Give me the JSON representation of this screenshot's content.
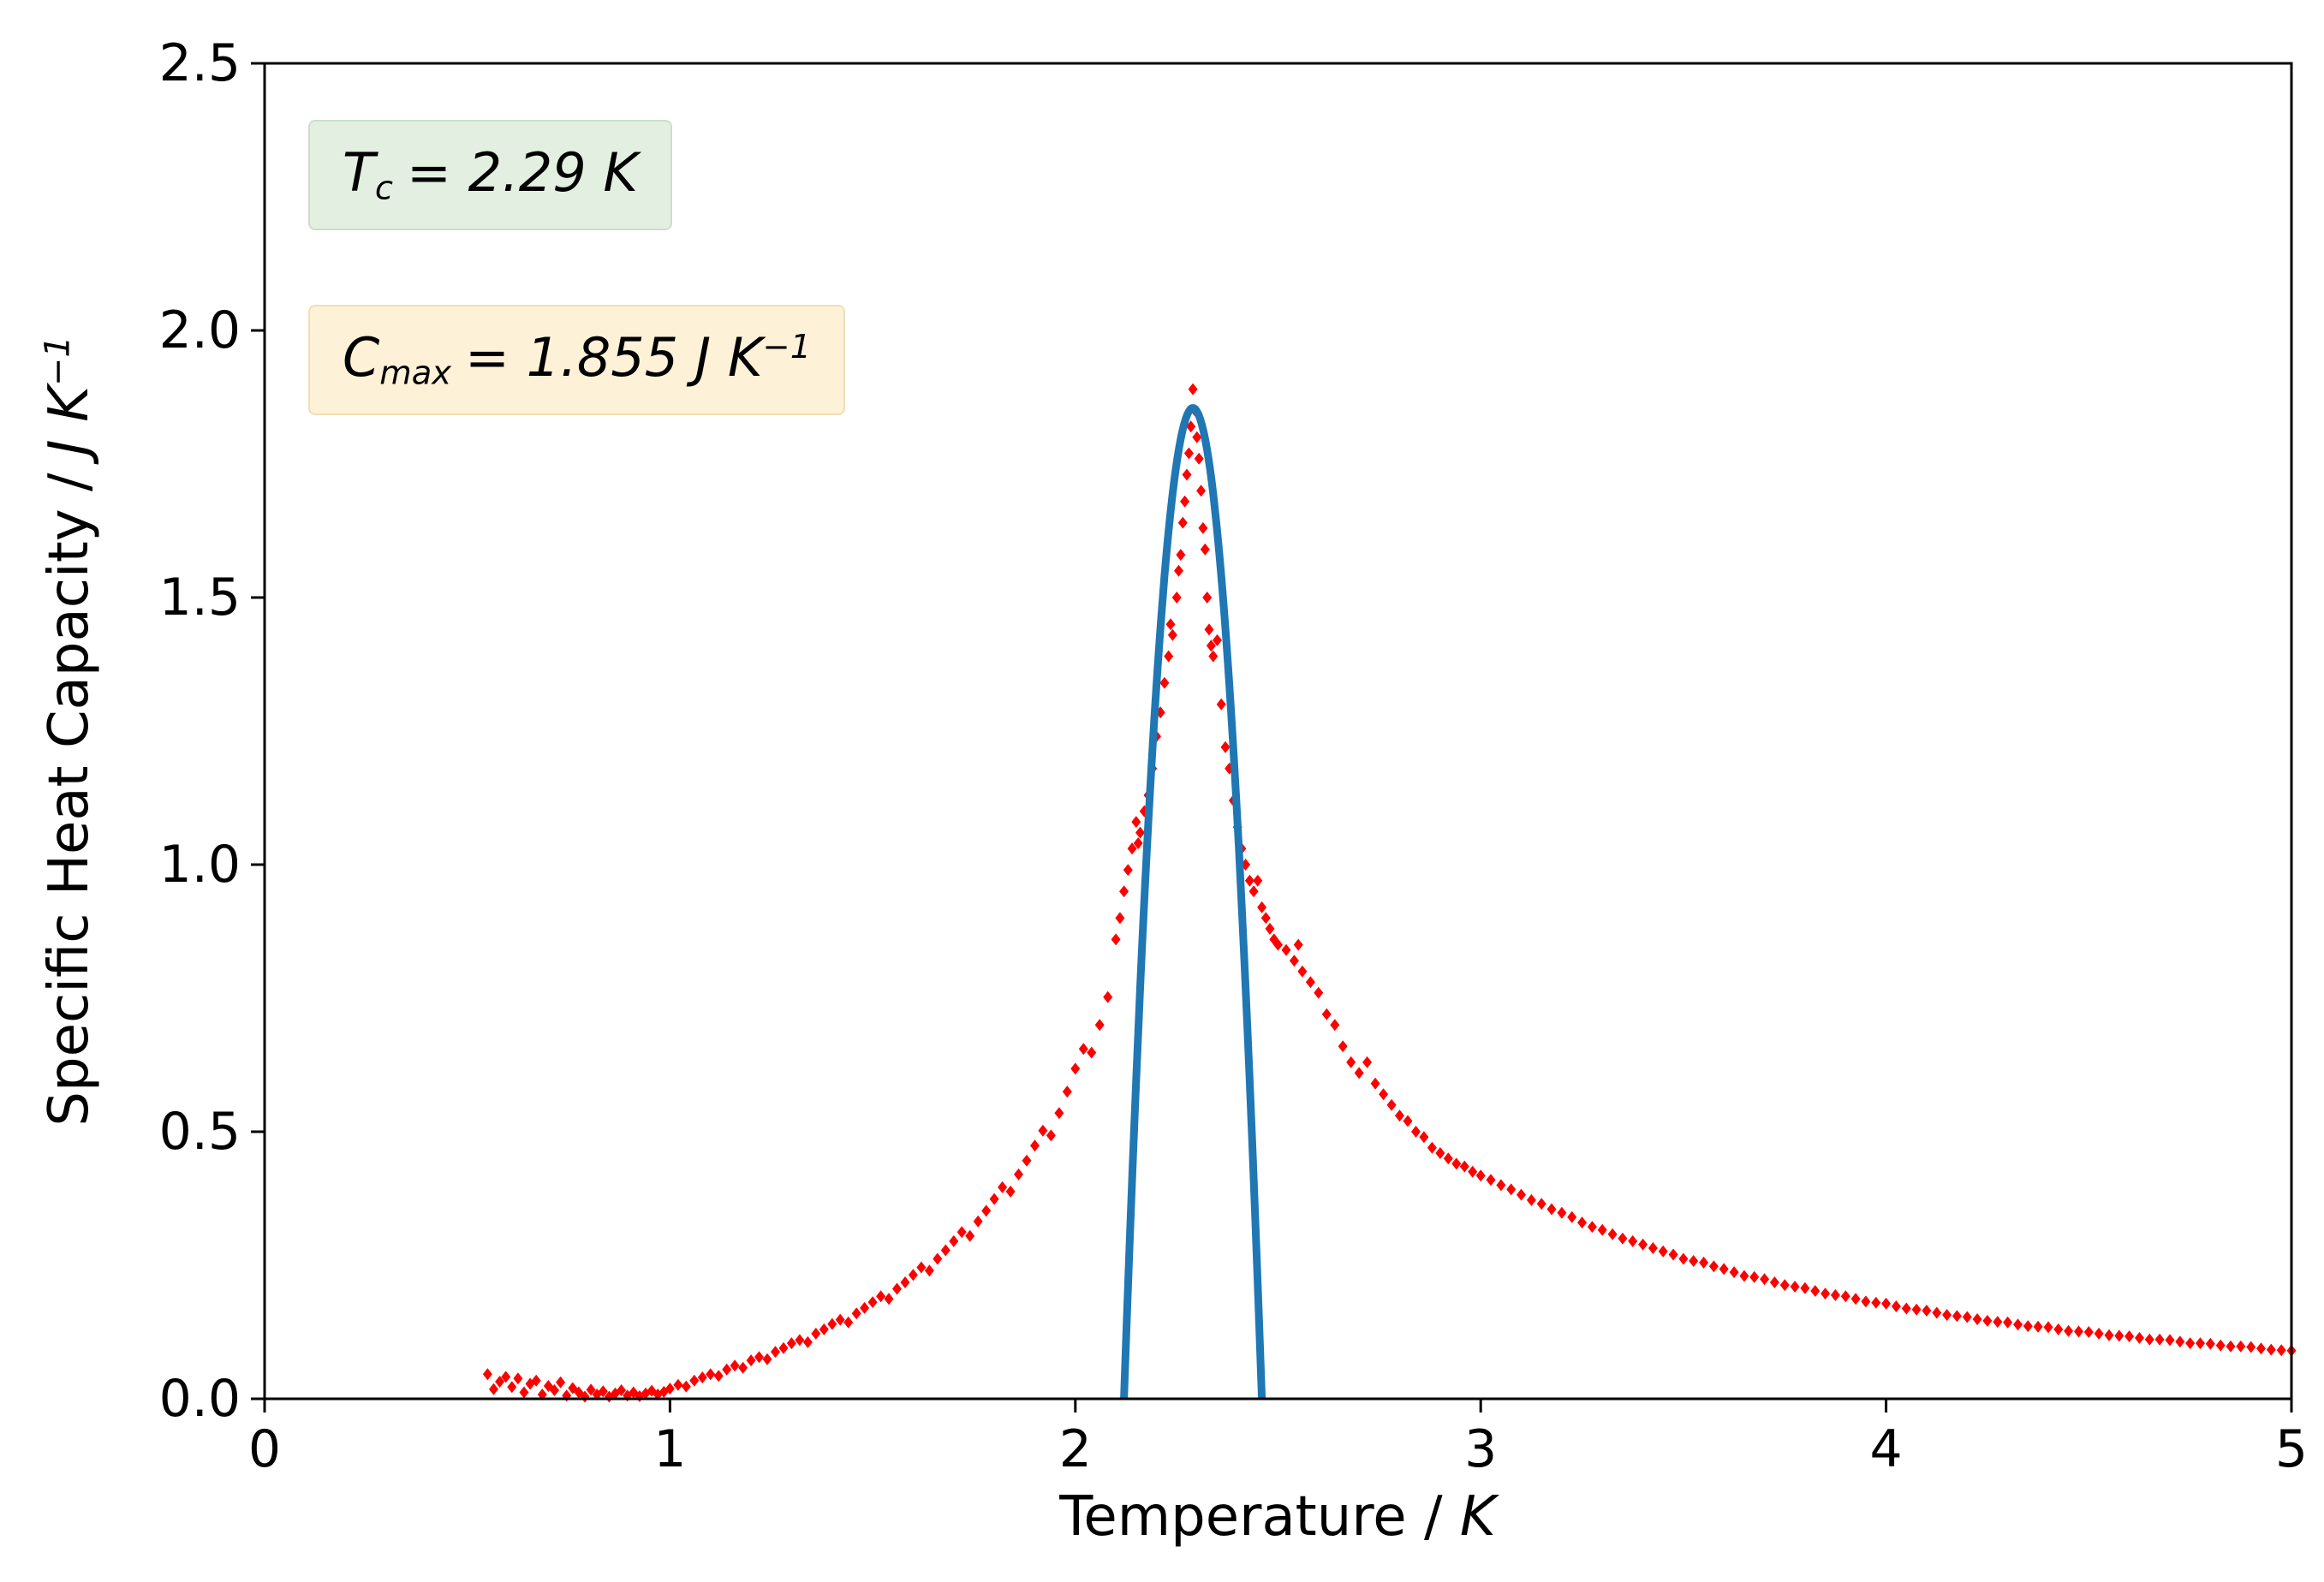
{
  "figure": {
    "background": "#ffffff",
    "frame_color": "#000000"
  },
  "annotations": {
    "tc": {
      "symbol": "T",
      "subscript": "c",
      "value": "= 2.29 K",
      "bg": "#e3f0e1",
      "border": "#cbdfc9"
    },
    "cmax": {
      "symbol": "C",
      "subscript": "max",
      "value": "= 1.855 J K",
      "superscript": "−1",
      "bg": "#fdf1d8",
      "border": "#eedfb5"
    }
  },
  "chart_data": {
    "type": "scatter",
    "title": "",
    "xlabel": "Temperature / K",
    "xlabel_parts": {
      "main": "Temperature / ",
      "unit": "K"
    },
    "ylabel": "Specific Heat Capacity / J K⁻¹",
    "ylabel_parts": {
      "main": "Specific Heat Capacity / ",
      "unit": "J K",
      "sup": "−1"
    },
    "xlim": [
      0,
      5
    ],
    "ylim": [
      0,
      2.5
    ],
    "xticks": [
      0,
      1,
      2,
      3,
      4,
      5
    ],
    "xtick_labels": [
      "0",
      "1",
      "2",
      "3",
      "4",
      "5"
    ],
    "yticks": [
      0,
      0.5,
      1,
      1.5,
      2,
      2.5
    ],
    "ytick_labels": [
      "0.0",
      "0.5",
      "1.0",
      "1.5",
      "2.0",
      "2.5"
    ],
    "grid": false,
    "legend_position": "none",
    "shown_values": {
      "tc_kelvin": 2.29,
      "cmax_J_per_K": 1.855
    },
    "series": [
      {
        "name": "measured_heat_capacity",
        "type": "scatter",
        "marker": "diamond",
        "color": "#ff0000",
        "points": [
          [
            0.55,
            0.046
          ],
          [
            0.565,
            0.018
          ],
          [
            0.58,
            0.032
          ],
          [
            0.595,
            0.041
          ],
          [
            0.61,
            0.022
          ],
          [
            0.625,
            0.038
          ],
          [
            0.64,
            0.012
          ],
          [
            0.655,
            0.028
          ],
          [
            0.67,
            0.034
          ],
          [
            0.685,
            0.008
          ],
          [
            0.7,
            0.024
          ],
          [
            0.715,
            0.016
          ],
          [
            0.73,
            0.031
          ],
          [
            0.745,
            0.006
          ],
          [
            0.76,
            0.02
          ],
          [
            0.775,
            0.012
          ],
          [
            0.79,
            0.004
          ],
          [
            0.805,
            0.017
          ],
          [
            0.82,
            0.008
          ],
          [
            0.835,
            0.014
          ],
          [
            0.85,
            0.004
          ],
          [
            0.865,
            0.01
          ],
          [
            0.88,
            0.016
          ],
          [
            0.895,
            0.006
          ],
          [
            0.91,
            0.012
          ],
          [
            0.925,
            0.005
          ],
          [
            0.94,
            0.01
          ],
          [
            0.955,
            0.015
          ],
          [
            0.97,
            0.008
          ],
          [
            0.985,
            0.013
          ],
          [
            1.0,
            0.019
          ],
          [
            1.02,
            0.026
          ],
          [
            1.04,
            0.023
          ],
          [
            1.06,
            0.034
          ],
          [
            1.08,
            0.04
          ],
          [
            1.1,
            0.046
          ],
          [
            1.12,
            0.043
          ],
          [
            1.14,
            0.055
          ],
          [
            1.16,
            0.062
          ],
          [
            1.18,
            0.058
          ],
          [
            1.2,
            0.072
          ],
          [
            1.22,
            0.078
          ],
          [
            1.24,
            0.074
          ],
          [
            1.26,
            0.088
          ],
          [
            1.28,
            0.095
          ],
          [
            1.3,
            0.104
          ],
          [
            1.32,
            0.11
          ],
          [
            1.34,
            0.106
          ],
          [
            1.36,
            0.122
          ],
          [
            1.38,
            0.13
          ],
          [
            1.4,
            0.14
          ],
          [
            1.42,
            0.148
          ],
          [
            1.44,
            0.143
          ],
          [
            1.46,
            0.16
          ],
          [
            1.48,
            0.17
          ],
          [
            1.5,
            0.181
          ],
          [
            1.52,
            0.192
          ],
          [
            1.54,
            0.187
          ],
          [
            1.56,
            0.206
          ],
          [
            1.58,
            0.218
          ],
          [
            1.6,
            0.232
          ],
          [
            1.62,
            0.246
          ],
          [
            1.64,
            0.24
          ],
          [
            1.66,
            0.262
          ],
          [
            1.68,
            0.278
          ],
          [
            1.7,
            0.295
          ],
          [
            1.72,
            0.312
          ],
          [
            1.74,
            0.305
          ],
          [
            1.76,
            0.332
          ],
          [
            1.78,
            0.352
          ],
          [
            1.8,
            0.374
          ],
          [
            1.82,
            0.396
          ],
          [
            1.84,
            0.388
          ],
          [
            1.86,
            0.42
          ],
          [
            1.88,
            0.446
          ],
          [
            1.9,
            0.474
          ],
          [
            1.92,
            0.502
          ],
          [
            1.94,
            0.493
          ],
          [
            1.96,
            0.535
          ],
          [
            1.98,
            0.575
          ],
          [
            2.0,
            0.618
          ],
          [
            2.02,
            0.655
          ],
          [
            2.04,
            0.648
          ],
          [
            2.06,
            0.7
          ],
          [
            2.08,
            0.752
          ],
          [
            2.1,
            0.86
          ],
          [
            2.11,
            0.9
          ],
          [
            2.12,
            0.95
          ],
          [
            2.13,
            0.99
          ],
          [
            2.14,
            1.03
          ],
          [
            2.15,
            1.08
          ],
          [
            2.155,
            1.04
          ],
          [
            2.16,
            1.06
          ],
          [
            2.17,
            1.1
          ],
          [
            2.18,
            1.13
          ],
          [
            2.19,
            1.18
          ],
          [
            2.2,
            1.24
          ],
          [
            2.21,
            1.285
          ],
          [
            2.22,
            1.34
          ],
          [
            2.23,
            1.39
          ],
          [
            2.235,
            1.45
          ],
          [
            2.24,
            1.43
          ],
          [
            2.25,
            1.5
          ],
          [
            2.255,
            1.55
          ],
          [
            2.26,
            1.58
          ],
          [
            2.265,
            1.64
          ],
          [
            2.27,
            1.68
          ],
          [
            2.275,
            1.73
          ],
          [
            2.28,
            1.77
          ],
          [
            2.285,
            1.82
          ],
          [
            2.29,
            1.89
          ],
          [
            2.295,
            1.85
          ],
          [
            2.3,
            1.8
          ],
          [
            2.305,
            1.76
          ],
          [
            2.31,
            1.7
          ],
          [
            2.315,
            1.63
          ],
          [
            2.32,
            1.59
          ],
          [
            2.325,
            1.5
          ],
          [
            2.33,
            1.44
          ],
          [
            2.335,
            1.41
          ],
          [
            2.34,
            1.39
          ],
          [
            2.35,
            1.42
          ],
          [
            2.36,
            1.3
          ],
          [
            2.37,
            1.22
          ],
          [
            2.38,
            1.18
          ],
          [
            2.39,
            1.12
          ],
          [
            2.4,
            1.07
          ],
          [
            2.41,
            1.03
          ],
          [
            2.42,
            1.0
          ],
          [
            2.43,
            0.97
          ],
          [
            2.44,
            0.95
          ],
          [
            2.45,
            0.97
          ],
          [
            2.46,
            0.92
          ],
          [
            2.47,
            0.9
          ],
          [
            2.48,
            0.88
          ],
          [
            2.49,
            0.86
          ],
          [
            2.5,
            0.85
          ],
          [
            2.52,
            0.84
          ],
          [
            2.54,
            0.82
          ],
          [
            2.55,
            0.85
          ],
          [
            2.56,
            0.8
          ],
          [
            2.58,
            0.78
          ],
          [
            2.6,
            0.76
          ],
          [
            2.62,
            0.72
          ],
          [
            2.64,
            0.7
          ],
          [
            2.66,
            0.66
          ],
          [
            2.68,
            0.63
          ],
          [
            2.7,
            0.61
          ],
          [
            2.72,
            0.63
          ],
          [
            2.74,
            0.59
          ],
          [
            2.76,
            0.57
          ],
          [
            2.78,
            0.55
          ],
          [
            2.8,
            0.53
          ],
          [
            2.82,
            0.52
          ],
          [
            2.84,
            0.5
          ],
          [
            2.86,
            0.49
          ],
          [
            2.88,
            0.47
          ],
          [
            2.9,
            0.46
          ],
          [
            2.92,
            0.45
          ],
          [
            2.94,
            0.44
          ],
          [
            2.96,
            0.435
          ],
          [
            2.98,
            0.425
          ],
          [
            3.0,
            0.418
          ],
          [
            3.025,
            0.41
          ],
          [
            3.05,
            0.4
          ],
          [
            3.075,
            0.392
          ],
          [
            3.1,
            0.382
          ],
          [
            3.125,
            0.372
          ],
          [
            3.15,
            0.365
          ],
          [
            3.175,
            0.355
          ],
          [
            3.2,
            0.348
          ],
          [
            3.225,
            0.34
          ],
          [
            3.25,
            0.33
          ],
          [
            3.275,
            0.322
          ],
          [
            3.3,
            0.316
          ],
          [
            3.325,
            0.308
          ],
          [
            3.35,
            0.3
          ],
          [
            3.375,
            0.295
          ],
          [
            3.4,
            0.289
          ],
          [
            3.425,
            0.282
          ],
          [
            3.45,
            0.276
          ],
          [
            3.475,
            0.27
          ],
          [
            3.5,
            0.262
          ],
          [
            3.525,
            0.258
          ],
          [
            3.55,
            0.255
          ],
          [
            3.575,
            0.248
          ],
          [
            3.6,
            0.243
          ],
          [
            3.625,
            0.237
          ],
          [
            3.65,
            0.23
          ],
          [
            3.675,
            0.228
          ],
          [
            3.7,
            0.224
          ],
          [
            3.725,
            0.218
          ],
          [
            3.75,
            0.213
          ],
          [
            3.775,
            0.21
          ],
          [
            3.8,
            0.207
          ],
          [
            3.825,
            0.202
          ],
          [
            3.85,
            0.197
          ],
          [
            3.875,
            0.194
          ],
          [
            3.9,
            0.192
          ],
          [
            3.925,
            0.187
          ],
          [
            3.95,
            0.182
          ],
          [
            3.975,
            0.18
          ],
          [
            4.0,
            0.178
          ],
          [
            4.025,
            0.173
          ],
          [
            4.05,
            0.169
          ],
          [
            4.075,
            0.167
          ],
          [
            4.1,
            0.165
          ],
          [
            4.125,
            0.161
          ],
          [
            4.15,
            0.157
          ],
          [
            4.175,
            0.155
          ],
          [
            4.2,
            0.153
          ],
          [
            4.225,
            0.149
          ],
          [
            4.25,
            0.146
          ],
          [
            4.275,
            0.144
          ],
          [
            4.3,
            0.143
          ],
          [
            4.325,
            0.139
          ],
          [
            4.35,
            0.136
          ],
          [
            4.375,
            0.135
          ],
          [
            4.4,
            0.134
          ],
          [
            4.425,
            0.13
          ],
          [
            4.45,
            0.127
          ],
          [
            4.475,
            0.126
          ],
          [
            4.5,
            0.125
          ],
          [
            4.525,
            0.122
          ],
          [
            4.55,
            0.119
          ],
          [
            4.575,
            0.118
          ],
          [
            4.6,
            0.117
          ],
          [
            4.625,
            0.114
          ],
          [
            4.65,
            0.111
          ],
          [
            4.675,
            0.111
          ],
          [
            4.7,
            0.11
          ],
          [
            4.725,
            0.107
          ],
          [
            4.75,
            0.104
          ],
          [
            4.775,
            0.104
          ],
          [
            4.8,
            0.103
          ],
          [
            4.825,
            0.1
          ],
          [
            4.85,
            0.098
          ],
          [
            4.875,
            0.098
          ],
          [
            4.9,
            0.097
          ],
          [
            4.925,
            0.094
          ],
          [
            4.95,
            0.092
          ],
          [
            4.975,
            0.091
          ],
          [
            5.0,
            0.09
          ]
        ]
      },
      {
        "name": "fit_curve",
        "type": "line",
        "color": "#1f77b4",
        "line_width": 9,
        "fit": {
          "shape": "parabola",
          "tc": 2.29,
          "cmax": 1.855,
          "half_width": 0.17
        }
      }
    ]
  }
}
